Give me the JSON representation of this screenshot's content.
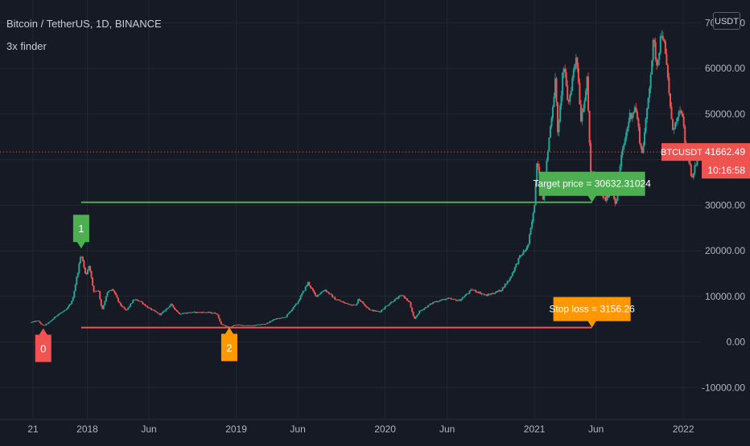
{
  "header": {
    "title": "Bitcoin / TetherUS, 1D, BINANCE",
    "indicator": "3x finder"
  },
  "currency_button": "USDT",
  "price_tag": {
    "symbol": "BTCUSDT",
    "price": "41662.49",
    "countdown": "10:16:58"
  },
  "colors": {
    "background": "#161a25",
    "grid": "#232733",
    "text": "#b2b5be",
    "up": "#26a69a",
    "down": "#ef5350",
    "green_label": "#4caf50",
    "red_label": "#f05350",
    "orange_label": "#ff9800"
  },
  "chart_data": {
    "type": "candlestick",
    "title": "Bitcoin / TetherUS, 1D, BINANCE",
    "x_axis": {
      "ticks": [
        "21",
        "2018",
        "Jun",
        "2019",
        "Jun",
        "2020",
        "Jun",
        "2021",
        "Jun",
        "2022"
      ],
      "tick_dates": [
        "2017-08-21",
        "2018-01-01",
        "2018-06-01",
        "2019-01-01",
        "2019-06-01",
        "2020-01-01",
        "2020-06-01",
        "2021-01-01",
        "2021-06-01",
        "2022-01-01"
      ],
      "range": [
        "2017-06-01",
        "2022-02-15"
      ]
    },
    "y_axis": {
      "ticks": [
        -10000,
        0,
        10000,
        20000,
        30000,
        40000,
        50000,
        60000,
        70000
      ],
      "tick_labels": [
        "-10000.00",
        "0.00",
        "10000.00",
        "20000.00",
        "30000.00",
        "40000.00",
        "50000.00",
        "60000.00",
        "70000.00"
      ],
      "range": [
        -17000,
        75000
      ]
    },
    "grid": true,
    "current_price": 41662.49,
    "price_series": [
      [
        "2017-08-17",
        4300
      ],
      [
        "2017-09-01",
        4700
      ],
      [
        "2017-09-15",
        3500
      ],
      [
        "2017-10-01",
        4400
      ],
      [
        "2017-10-20",
        6000
      ],
      [
        "2017-11-10",
        7000
      ],
      [
        "2017-11-25",
        9000
      ],
      [
        "2017-12-08",
        15000
      ],
      [
        "2017-12-17",
        19500
      ],
      [
        "2017-12-28",
        14500
      ],
      [
        "2018-01-06",
        17000
      ],
      [
        "2018-01-16",
        11000
      ],
      [
        "2018-01-28",
        11500
      ],
      [
        "2018-02-06",
        7000
      ],
      [
        "2018-02-20",
        11000
      ],
      [
        "2018-03-05",
        11500
      ],
      [
        "2018-03-20",
        8500
      ],
      [
        "2018-04-06",
        6800
      ],
      [
        "2018-04-25",
        9300
      ],
      [
        "2018-05-10",
        9000
      ],
      [
        "2018-05-30",
        7500
      ],
      [
        "2018-06-29",
        6000
      ],
      [
        "2018-07-25",
        8200
      ],
      [
        "2018-08-14",
        6200
      ],
      [
        "2018-09-15",
        6500
      ],
      [
        "2018-10-15",
        6500
      ],
      [
        "2018-11-14",
        6300
      ],
      [
        "2018-11-25",
        3900
      ],
      [
        "2018-12-15",
        3200
      ],
      [
        "2018-12-31",
        3800
      ],
      [
        "2019-01-20",
        3600
      ],
      [
        "2019-02-10",
        3600
      ],
      [
        "2019-03-15",
        4000
      ],
      [
        "2019-04-05",
        5000
      ],
      [
        "2019-05-01",
        5400
      ],
      [
        "2019-05-30",
        8500
      ],
      [
        "2019-06-26",
        13000
      ],
      [
        "2019-07-15",
        10000
      ],
      [
        "2019-08-06",
        11500
      ],
      [
        "2019-08-30",
        9500
      ],
      [
        "2019-09-25",
        8500
      ],
      [
        "2019-10-22",
        8000
      ],
      [
        "2019-10-27",
        9500
      ],
      [
        "2019-11-25",
        7000
      ],
      [
        "2019-12-18",
        6600
      ],
      [
        "2020-01-15",
        8700
      ],
      [
        "2020-02-12",
        10300
      ],
      [
        "2020-03-01",
        8600
      ],
      [
        "2020-03-12",
        4900
      ],
      [
        "2020-03-25",
        6700
      ],
      [
        "2020-04-30",
        8800
      ],
      [
        "2020-06-01",
        9500
      ],
      [
        "2020-07-01",
        9100
      ],
      [
        "2020-08-01",
        11500
      ],
      [
        "2020-09-05",
        10200
      ],
      [
        "2020-10-10",
        11300
      ],
      [
        "2020-11-01",
        13800
      ],
      [
        "2020-11-25",
        18500
      ],
      [
        "2020-12-16",
        21000
      ],
      [
        "2020-12-31",
        29000
      ],
      [
        "2021-01-08",
        40500
      ],
      [
        "2021-01-22",
        31000
      ],
      [
        "2021-02-08",
        46500
      ],
      [
        "2021-02-21",
        57000
      ],
      [
        "2021-02-28",
        45000
      ],
      [
        "2021-03-13",
        61000
      ],
      [
        "2021-03-25",
        52000
      ],
      [
        "2021-04-14",
        63500
      ],
      [
        "2021-04-25",
        49000
      ],
      [
        "2021-05-10",
        57000
      ],
      [
        "2021-05-19",
        37000
      ],
      [
        "2021-06-01",
        36000
      ],
      [
        "2021-06-22",
        31000
      ],
      [
        "2021-07-10",
        34000
      ],
      [
        "2021-07-20",
        29800
      ],
      [
        "2021-08-01",
        40000
      ],
      [
        "2021-08-22",
        49500
      ],
      [
        "2021-09-06",
        51500
      ],
      [
        "2021-09-21",
        41000
      ],
      [
        "2021-10-01",
        48000
      ],
      [
        "2021-10-20",
        66000
      ],
      [
        "2021-10-28",
        61000
      ],
      [
        "2021-11-10",
        68800
      ],
      [
        "2021-11-25",
        57000
      ],
      [
        "2021-12-04",
        47000
      ],
      [
        "2021-12-15",
        48000
      ],
      [
        "2021-12-27",
        51000
      ],
      [
        "2022-01-05",
        44000
      ],
      [
        "2022-01-12",
        42000
      ],
      [
        "2022-01-22",
        35000
      ],
      [
        "2022-01-28",
        37500
      ],
      [
        "2022-02-06",
        41662
      ]
    ],
    "lines": [
      {
        "name": "target",
        "from": "2017-12-17",
        "to": "2021-05-22",
        "value": 30632.3
      },
      {
        "name": "stop",
        "from": "2017-12-17",
        "to": "2021-05-22",
        "value": 3156.26
      }
    ],
    "markers": [
      {
        "label": "0",
        "date": "2017-09-15",
        "value": 3000,
        "position": "below"
      },
      {
        "label": "1",
        "date": "2017-12-17",
        "value": 20500,
        "position": "above"
      },
      {
        "label": "2",
        "date": "2018-12-15",
        "value": 3200,
        "position": "below"
      }
    ],
    "annotations": [
      {
        "text": "Target price = 30632.31024",
        "date": "2021-05-22",
        "value": 30632.3
      },
      {
        "text": "Stop loss = 3156.26",
        "date": "2021-05-22",
        "value": 3156.26
      }
    ]
  }
}
